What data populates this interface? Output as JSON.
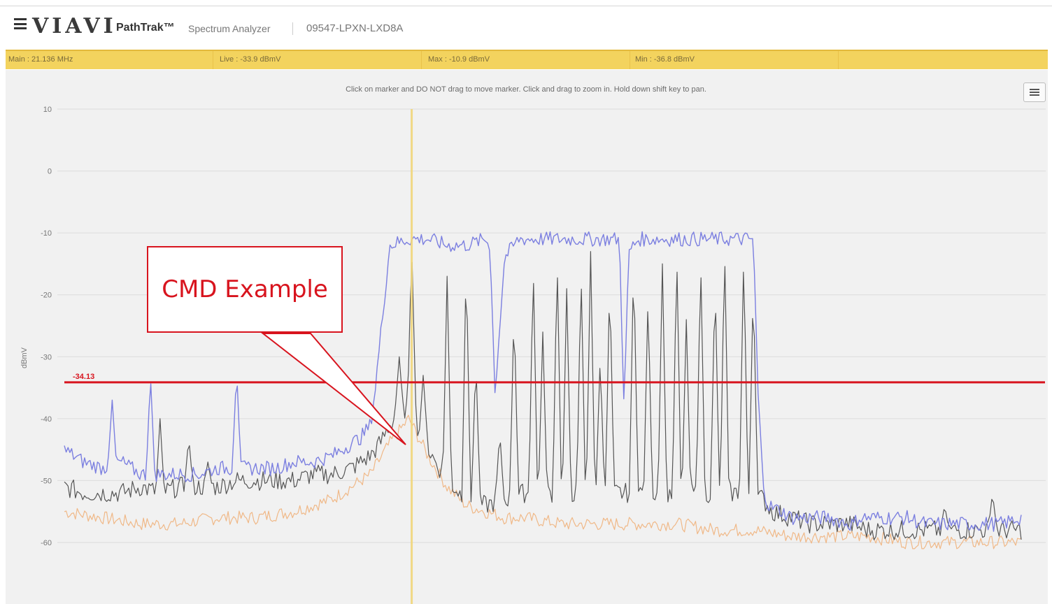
{
  "header": {
    "logo": "VIAVI",
    "product": "PathTrak™",
    "product_sub": "Spectrum Analyzer",
    "device_id": "09547-LPXN-LXD8A"
  },
  "status": {
    "main": "Main : 21.136 MHz",
    "live": "Live : -33.9 dBmV",
    "max": "Max : -10.9 dBmV",
    "min": "Min : -36.8 dBmV"
  },
  "hint": "Click on marker and DO NOT drag to move marker. Click and drag to zoom in. Hold down shift key to pan.",
  "threshold_label": "-34.13",
  "callout_text": "CMD Example",
  "colors": {
    "status_bar": "#f3d35e",
    "max_trace": "#7b7fe0",
    "live_trace": "#555555",
    "min_trace": "#f0b887",
    "threshold": "#d8141e",
    "marker": "#f2d77a"
  },
  "chart_data": {
    "type": "line",
    "ylabel": "dBmV",
    "ylim": [
      -60,
      10
    ],
    "yticks": [
      "10",
      "0",
      "-10",
      "-20",
      "-30",
      "-40",
      "-50",
      "-60"
    ],
    "threshold": -34.13,
    "x_domain": [
      0,
      100
    ],
    "marker_x": 36.3,
    "series": [
      {
        "key": "max",
        "x": [
          0,
          2,
          4,
          6,
          8,
          10,
          12,
          14,
          16,
          18,
          20,
          22,
          24,
          26,
          28,
          30,
          31,
          32,
          32.5,
          34,
          36,
          38,
          40,
          42,
          44,
          44.5,
          45,
          46,
          47.5,
          48,
          50,
          52,
          54,
          58,
          58.5,
          59,
          60,
          61.5,
          62,
          64,
          66,
          68,
          70,
          72,
          72.5,
          73,
          73.5,
          75,
          76,
          78,
          80,
          82,
          82.5,
          83,
          84,
          86,
          88,
          90,
          92,
          94,
          96,
          98,
          100
        ],
        "y": [
          -45,
          -47,
          -48,
          -47,
          -49,
          -49,
          -49,
          -49,
          -48,
          -48,
          -48,
          -48,
          -47,
          -47,
          -46,
          -44,
          -43,
          -41,
          -35,
          -12,
          -11,
          -11,
          -12,
          -12,
          -11,
          -12,
          -36,
          -14,
          -11,
          -11,
          -11,
          -11,
          -11,
          -11,
          -38,
          -13,
          -11,
          -11,
          -11,
          -11,
          -11,
          -11,
          -11,
          -11,
          -36,
          -50,
          -54,
          -55,
          -56,
          -56,
          -56,
          -57,
          -57,
          -56,
          -56,
          -56,
          -56,
          -57,
          -57,
          -57,
          -57,
          -57,
          -56
        ]
      },
      {
        "key": "min",
        "x": [
          0,
          4,
          8,
          12,
          16,
          20,
          24,
          26,
          28,
          30,
          32,
          34,
          36,
          38,
          40,
          42,
          44,
          46,
          48,
          52,
          56,
          60,
          64,
          68,
          72,
          76,
          80,
          84,
          88,
          92,
          96,
          100
        ],
        "y": [
          -55,
          -56,
          -57,
          -57,
          -56,
          -56,
          -55,
          -54,
          -53,
          -51,
          -49,
          -44,
          -40,
          -46,
          -51,
          -54,
          -55,
          -56,
          -56,
          -57,
          -57,
          -57,
          -57,
          -58,
          -58,
          -59,
          -59,
          -59,
          -60,
          -60,
          -60,
          -60
        ]
      },
      {
        "key": "live",
        "x": [
          0,
          2,
          4,
          6,
          8,
          10,
          12,
          14,
          16,
          18,
          20,
          22,
          24,
          26,
          28,
          30,
          31,
          32,
          33,
          34,
          35,
          36,
          38,
          40,
          42,
          44,
          46,
          48,
          50,
          52,
          54,
          56,
          58,
          60,
          62,
          64,
          66,
          68,
          70,
          72,
          73,
          74,
          76,
          78,
          80,
          82,
          84,
          86,
          88,
          90,
          92,
          94,
          96,
          98,
          100
        ],
        "y": [
          -51,
          -52,
          -52,
          -52,
          -51,
          -52,
          -51,
          -51,
          -51,
          -50,
          -50,
          -50,
          -50,
          -49,
          -49,
          -48,
          -47,
          -46,
          -44,
          -41,
          -39,
          -38,
          -45,
          -50,
          -53,
          -54,
          -53,
          -52,
          -52,
          -52,
          -52,
          -52,
          -52,
          -52,
          -52,
          -52,
          -52,
          -52,
          -52,
          -52,
          -53,
          -55,
          -56,
          -57,
          -57,
          -57,
          -58,
          -58,
          -58,
          -58,
          -58,
          -58,
          -58,
          -58,
          -58
        ]
      }
    ],
    "spikes": [
      {
        "series": "max",
        "x": 5,
        "y": -37
      },
      {
        "series": "max",
        "x": 9,
        "y": -33
      },
      {
        "series": "max",
        "x": 18,
        "y": -32
      },
      {
        "series": "live",
        "x": 10,
        "y": -40
      },
      {
        "series": "live",
        "x": 13,
        "y": -43
      },
      {
        "series": "live",
        "x": 15,
        "y": -47
      },
      {
        "series": "live",
        "x": 35,
        "y": -30
      },
      {
        "series": "live",
        "x": 36.3,
        "y": -12
      },
      {
        "series": "live",
        "x": 37.5,
        "y": -33
      },
      {
        "series": "live",
        "x": 40,
        "y": -17
      },
      {
        "series": "live",
        "x": 42,
        "y": -14
      },
      {
        "series": "live",
        "x": 43,
        "y": -30
      },
      {
        "series": "live",
        "x": 45.5,
        "y": -42
      },
      {
        "series": "live",
        "x": 47,
        "y": -22
      },
      {
        "series": "live",
        "x": 49,
        "y": -15
      },
      {
        "series": "live",
        "x": 50,
        "y": -26
      },
      {
        "series": "live",
        "x": 51.5,
        "y": -14
      },
      {
        "series": "live",
        "x": 52.5,
        "y": -19
      },
      {
        "series": "live",
        "x": 54,
        "y": -16
      },
      {
        "series": "live",
        "x": 55,
        "y": -13
      },
      {
        "series": "live",
        "x": 56,
        "y": -30
      },
      {
        "series": "live",
        "x": 57,
        "y": -17
      },
      {
        "series": "live",
        "x": 59.5,
        "y": -14
      },
      {
        "series": "live",
        "x": 61,
        "y": -20
      },
      {
        "series": "live",
        "x": 62.5,
        "y": -15
      },
      {
        "series": "live",
        "x": 64,
        "y": -13
      },
      {
        "series": "live",
        "x": 65,
        "y": -24
      },
      {
        "series": "live",
        "x": 66.5,
        "y": -14
      },
      {
        "series": "live",
        "x": 68,
        "y": -17
      },
      {
        "series": "live",
        "x": 69,
        "y": -12
      },
      {
        "series": "live",
        "x": 71,
        "y": -13
      },
      {
        "series": "live",
        "x": 72,
        "y": -18
      },
      {
        "series": "live",
        "x": 92,
        "y": -54
      },
      {
        "series": "live",
        "x": 97,
        "y": -52
      }
    ]
  }
}
